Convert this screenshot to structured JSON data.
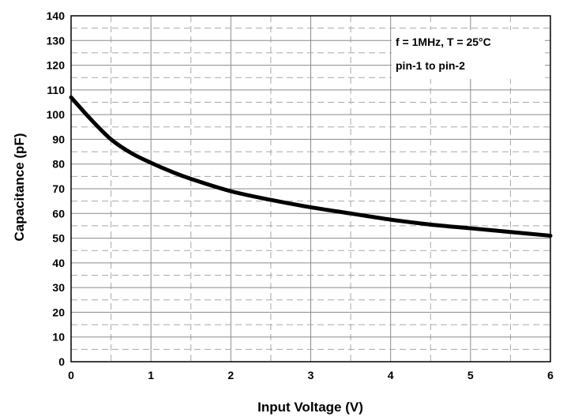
{
  "chart_data": {
    "type": "line",
    "title": "",
    "xlabel": "Input Voltage (V)",
    "ylabel": "Capacitance (pF)",
    "xlim": [
      0,
      6
    ],
    "ylim": [
      0,
      140
    ],
    "x_ticks": [
      0,
      1,
      2,
      3,
      4,
      5,
      6
    ],
    "y_ticks": [
      0,
      10,
      20,
      30,
      40,
      50,
      60,
      70,
      80,
      90,
      100,
      110,
      120,
      130,
      140
    ],
    "grid": true,
    "annotations": [
      "f = 1MHz, T = 25°C",
      "pin-1 to pin-2"
    ],
    "series": [
      {
        "x": [
          0,
          0.25,
          0.5,
          0.75,
          1,
          1.25,
          1.5,
          2,
          2.5,
          3,
          3.5,
          4,
          4.5,
          5,
          5.5,
          6
        ],
        "y": [
          107,
          98,
          90,
          84.5,
          80.5,
          77,
          74,
          69,
          65.5,
          62.5,
          60,
          57.5,
          55.5,
          54,
          52.5,
          51
        ]
      }
    ]
  }
}
